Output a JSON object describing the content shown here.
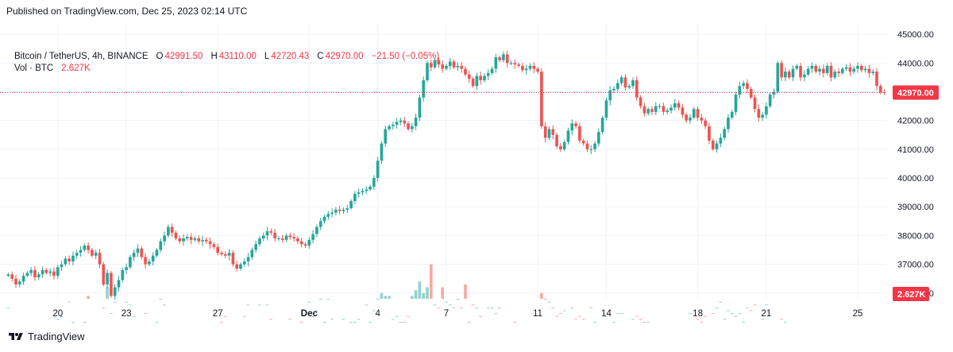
{
  "header": {
    "published": "Published on TradingView.com, Dec 25, 2023 02:14 UTC"
  },
  "legend": {
    "symbol": "Bitcoin / TetherUS, 4h, BINANCE",
    "o_label": "O",
    "o_value": "42991.50",
    "h_label": "H",
    "h_value": "43110.00",
    "l_label": "L",
    "l_value": "42720.43",
    "c_label": "C",
    "c_value": "42970.00",
    "change": "−21.50 (−0.05%)",
    "vol_label": "Vol · BTC",
    "vol_value": "2.627K"
  },
  "footer": {
    "brand": "TradingView"
  },
  "colors": {
    "up": "#26a69a",
    "down": "#ef5350",
    "up_vol": "#92d2cc",
    "down_vol": "#f7a9a7",
    "grid": "#f0f3fa",
    "price_line": "#f23645"
  },
  "chart_data": {
    "type": "candlestick",
    "symbol": "BTCUSDT",
    "interval": "4h",
    "ylim": [
      35000,
      45500
    ],
    "y_ticks": [
      "45000.00",
      "44000.00",
      "43000.00",
      "42000.00",
      "41000.00",
      "40000.00",
      "39000.00",
      "38000.00",
      "37000.00",
      "36000.00"
    ],
    "x_ticks": [
      {
        "label": "20",
        "bar": 13
      },
      {
        "label": "23",
        "bar": 31
      },
      {
        "label": "27",
        "bar": 55
      },
      {
        "label": "Dec",
        "bar": 79
      },
      {
        "label": "4",
        "bar": 97
      },
      {
        "label": "7",
        "bar": 115
      },
      {
        "label": "11",
        "bar": 139
      },
      {
        "label": "14",
        "bar": 157
      },
      {
        "label": "18",
        "bar": 181
      },
      {
        "label": "21",
        "bar": 199
      },
      {
        "label": "25",
        "bar": 223
      }
    ],
    "last_price": "42970.00",
    "last_volume": "2.627K",
    "closes": [
      36650,
      36500,
      36300,
      36400,
      36600,
      36700,
      36800,
      36550,
      36650,
      36800,
      36700,
      36750,
      36600,
      36900,
      37000,
      37200,
      37100,
      37300,
      37400,
      37500,
      37650,
      37500,
      37300,
      37400,
      37000,
      36300,
      36700,
      35900,
      36200,
      36450,
      36800,
      36900,
      37250,
      37400,
      37550,
      37250,
      37000,
      37100,
      37300,
      37500,
      37800,
      38000,
      38300,
      38100,
      37900,
      37800,
      37900,
      37950,
      37850,
      37900,
      37800,
      37850,
      37800,
      37700,
      37600,
      37400,
      37350,
      37300,
      37400,
      37000,
      36850,
      37000,
      37100,
      37250,
      37500,
      37700,
      37900,
      38000,
      38150,
      38100,
      37900,
      37900,
      37850,
      38000,
      37950,
      37900,
      37800,
      37700,
      37650,
      37850,
      38050,
      38300,
      38500,
      38650,
      38750,
      38800,
      38900,
      38850,
      38900,
      38950,
      39200,
      39450,
      39500,
      39550,
      39600,
      39700,
      40000,
      40600,
      41200,
      41700,
      41800,
      41850,
      41950,
      42000,
      41900,
      41700,
      41800,
      42100,
      42800,
      43400,
      44000,
      43850,
      44100,
      43950,
      43800,
      43900,
      44050,
      43850,
      43900,
      43800,
      43600,
      43450,
      43200,
      43550,
      43400,
      43550,
      43650,
      43800,
      44200,
      44100,
      44300,
      44000,
      44000,
      43950,
      43900,
      43750,
      43800,
      43900,
      43800,
      43700,
      41800,
      41400,
      41700,
      41500,
      41100,
      41000,
      41250,
      41650,
      41900,
      41800,
      41300,
      41200,
      41000,
      41000,
      41200,
      41600,
      42100,
      42700,
      43050,
      43100,
      43300,
      43500,
      43150,
      43200,
      43400,
      42800,
      42500,
      42250,
      42400,
      42300,
      42500,
      42500,
      42300,
      42350,
      42450,
      42600,
      42450,
      42200,
      42000,
      42100,
      42400,
      42100,
      42000,
      41800,
      41300,
      41000,
      41200,
      41400,
      41700,
      42100,
      42300,
      42900,
      43200,
      43300,
      43100,
      42800,
      42400,
      42100,
      42200,
      42500,
      42900,
      43000,
      44000,
      43500,
      43700,
      43500,
      43800,
      43900,
      43500,
      43600,
      43800,
      43900,
      43700,
      43800,
      43650,
      43900,
      43500,
      43700,
      43650,
      43800,
      43850,
      43700,
      43800,
      43900,
      43750,
      43800,
      43650,
      43700,
      43200,
      42980,
      42970
    ],
    "volumes": [
      35.5,
      34.6,
      34.1,
      34.8,
      34.3,
      34.3,
      34.7,
      34.8,
      34.6,
      34.5,
      34.4,
      34.8,
      34.6,
      35.1,
      35.2,
      34.7,
      35.7,
      35.0,
      34.4,
      34.6,
      35.0,
      35.9,
      34.7,
      34.8,
      34.7,
      35.5,
      36.2,
      35.3,
      35.7,
      34.8,
      34.9,
      35.7,
      35.6,
      35.2,
      34.7,
      34.6,
      35.3,
      34.5,
      34.3,
      35.0,
      35.8,
      35.6,
      34.5,
      34.4,
      34.5,
      34.4,
      34.8,
      34.6,
      34.5,
      34.5,
      34.4,
      34.5,
      34.3,
      34.6,
      35.3,
      35.4,
      35.0,
      35.2,
      34.9,
      34.6,
      34.8,
      34.9,
      35.2,
      35.6,
      34.6,
      34.8,
      35.6,
      34.9,
      35.6,
      35.1,
      34.4,
      34.9,
      34.6,
      34.7,
      35.1,
      34.8,
      34.3,
      35.0,
      34.7,
      35.7,
      35.2,
      35.4,
      35.8,
      35.0,
      35.8,
      35.1,
      34.4,
      34.6,
      35.1,
      34.6,
      35.0,
      35.0,
      35.1,
      34.6,
      35.6,
      35.0,
      35.4,
      35.8,
      36.0,
      35.9,
      35.9,
      35.1,
      35.2,
      35.0,
      35.0,
      35.2,
      35.9,
      36.1,
      36.4,
      36.0,
      36.2,
      37.0,
      35.6,
      35.5,
      36.2,
      35.7,
      35.6,
      35.5,
      35.8,
      35.5,
      36.3,
      35.0,
      35.6,
      35.5,
      35.2,
      34.8,
      35.5,
      35.5,
      35.3,
      35.5,
      34.9,
      34.9,
      34.9,
      35.0,
      34.6,
      34.6,
      34.7,
      34.7,
      34.4,
      34.6,
      36.0,
      35.8,
      35.7,
      35.5,
      35.2,
      35.3,
      35.4,
      34.9,
      35.5,
      35.1,
      35.2,
      35.1,
      34.8,
      35.5,
      35.0,
      34.8,
      34.7,
      35.2,
      35.4,
      35.0,
      35.3,
      35.3,
      34.9,
      34.9,
      35.1,
      35.2,
      35.1,
      35.0,
      35.0,
      34.9,
      34.9,
      34.9,
      34.5,
      34.4,
      34.7,
      34.7,
      34.6,
      34.5,
      34.8,
      35.3,
      34.8,
      35.1,
      35.0,
      35.2,
      34.9,
      35.3,
      35.5,
      35.7,
      35.1,
      35.4,
      35.3,
      35.2,
      35.3,
      35.0,
      35.5,
      35.4,
      35.6,
      34.5,
      35.1,
      35.6,
      34.9,
      34.7,
      34.8,
      35.1,
      35.0,
      34.8,
      34.8,
      34.5,
      34.9,
      34.7,
      34.8,
      34.6,
      34.9,
      34.8,
      34.6,
      34.7,
      34.5,
      34.6,
      34.5,
      34.7,
      34.7,
      34.6,
      34.5,
      35.4,
      34.5,
      34.4
    ]
  }
}
